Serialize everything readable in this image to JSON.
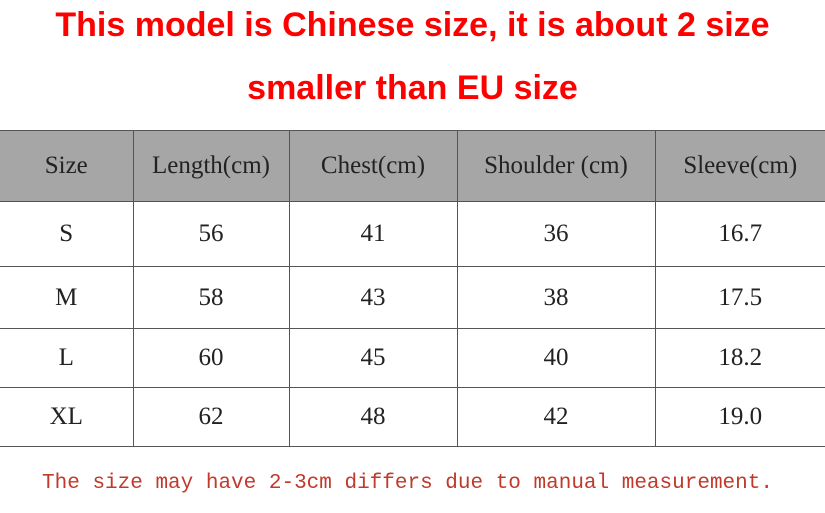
{
  "header": {
    "title_lines": [
      "This model is Chinese size, it is about 2 size",
      "smaller than EU size"
    ]
  },
  "table": {
    "columns": [
      "Size",
      "Length(cm)",
      "Chest(cm)",
      "Shoulder (cm)",
      "Sleeve(cm)"
    ],
    "rows": [
      [
        "S",
        "56",
        "41",
        "36",
        "16.7"
      ],
      [
        "M",
        "58",
        "43",
        "38",
        "17.5"
      ],
      [
        "L",
        "60",
        "45",
        "40",
        "18.2"
      ],
      [
        "XL",
        "62",
        "48",
        "42",
        "19.0"
      ]
    ]
  },
  "footnote": "The size may have 2-3cm differs due to manual measurement."
}
